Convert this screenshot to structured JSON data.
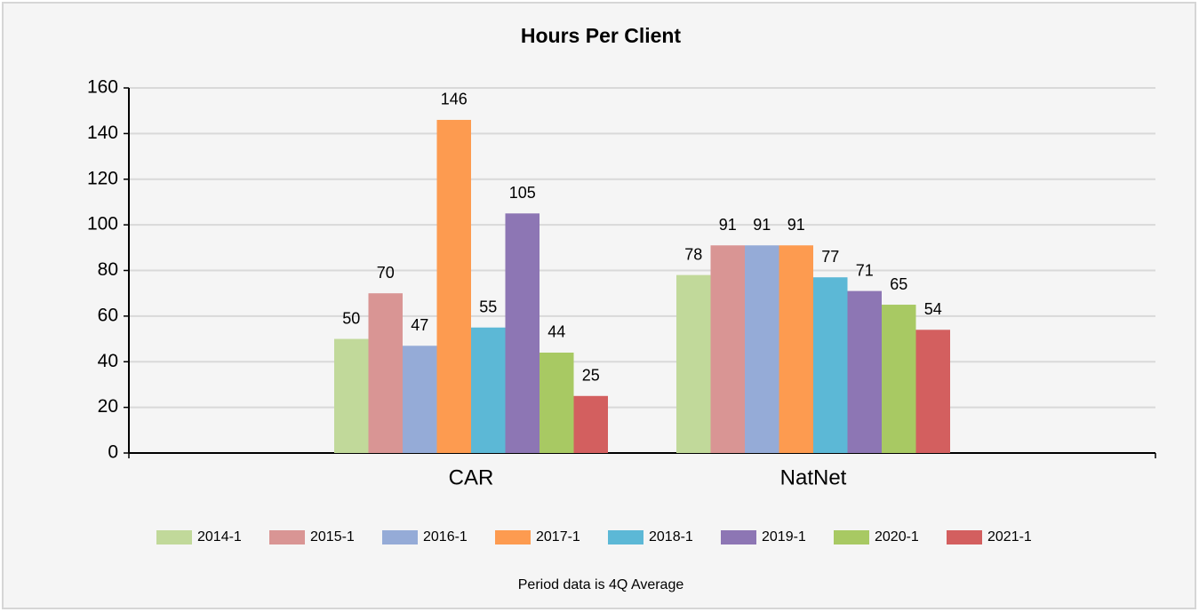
{
  "chart_data": {
    "type": "bar",
    "title": "Hours Per Client",
    "footnote": "Period data is 4Q Average",
    "categories": [
      "CAR",
      "NatNet"
    ],
    "series": [
      {
        "name": "2014-1",
        "color": "#c1d99a",
        "values": [
          50,
          78
        ]
      },
      {
        "name": "2015-1",
        "color": "#d99594",
        "values": [
          70,
          91
        ]
      },
      {
        "name": "2016-1",
        "color": "#95abd7",
        "values": [
          47,
          91
        ]
      },
      {
        "name": "2017-1",
        "color": "#fd9b50",
        "values": [
          146,
          91
        ]
      },
      {
        "name": "2018-1",
        "color": "#5cb8d6",
        "values": [
          55,
          77
        ]
      },
      {
        "name": "2019-1",
        "color": "#8d76b4",
        "values": [
          105,
          71
        ]
      },
      {
        "name": "2020-1",
        "color": "#a8c963",
        "values": [
          44,
          65
        ]
      },
      {
        "name": "2021-1",
        "color": "#d35f5f",
        "values": [
          25,
          54
        ]
      }
    ],
    "ylim": [
      0,
      160
    ],
    "yticks": [
      0,
      20,
      40,
      60,
      80,
      100,
      120,
      140,
      160
    ],
    "grid": true,
    "legend": "bottom"
  }
}
